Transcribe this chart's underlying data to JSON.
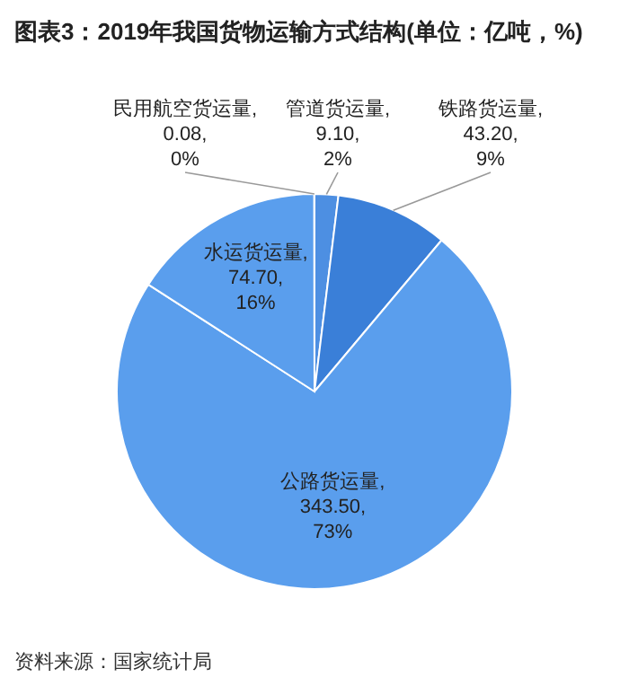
{
  "chart_data": {
    "type": "pie",
    "title": "图表3：2019年我国货物运输方式结构(单位：亿吨，%)",
    "categories": [
      "管道货运量",
      "铁路货运量",
      "公路货运量",
      "水运货运量",
      "民用航空货运量"
    ],
    "values": [
      9.1,
      43.2,
      343.5,
      74.7,
      0.08
    ],
    "value_labels": [
      ", 9.10, 2%",
      ", 43.20, 9%",
      ", 343.50, 73%",
      ", 74.70, 16%",
      ", 0.08, 0%"
    ],
    "colors": [
      "#4d8fe2",
      "#3a7fd8",
      "#5a9eed",
      "#5a9eed",
      "#9ec7f5"
    ],
    "annotations": [
      "资料来源：国家统计局"
    ]
  }
}
